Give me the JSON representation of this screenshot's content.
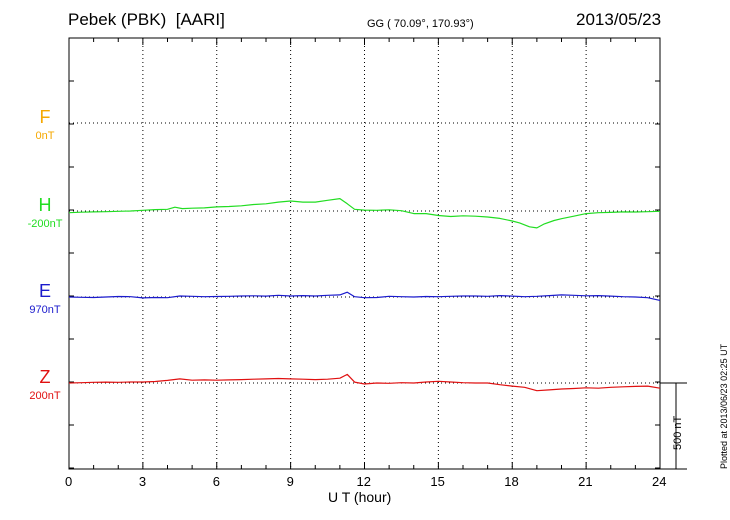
{
  "header": {
    "station": "Pebek (PBK)",
    "network": "[AARI]",
    "coords": "GG ( 70.09°, 170.93°)",
    "date": "2013/05/23"
  },
  "footer": {
    "plotted": "Plotted at 2013/06/23 02:25 UT"
  },
  "chart_data": {
    "type": "line",
    "title": "Pebek (PBK)  [AARI]",
    "xlabel": "U T (hour)",
    "xlim": [
      0,
      24
    ],
    "x_ticks": [
      "0",
      "3",
      "6",
      "9",
      "12",
      "15",
      "18",
      "21",
      "24"
    ],
    "grid": true,
    "scale_bar": {
      "label": "500 nT",
      "value_nT": 500
    },
    "components": [
      {
        "letter": "F",
        "baseline": "0nT",
        "color": "#f5a800",
        "has_data": false
      },
      {
        "letter": "H",
        "baseline": "-200nT",
        "color": "#22dd22",
        "has_data": true
      },
      {
        "letter": "E",
        "baseline": "970nT",
        "color": "#1a1acc",
        "has_data": true
      },
      {
        "letter": "Z",
        "baseline": "200nT",
        "color": "#e01010",
        "has_data": true
      }
    ],
    "series": [
      {
        "component": "H",
        "x": [
          0,
          0.5,
          1,
          1.5,
          2,
          2.5,
          3,
          3.5,
          4,
          4.3,
          4.6,
          5,
          5.5,
          6,
          6.5,
          7,
          7.5,
          8,
          8.5,
          9,
          9.5,
          10,
          10.5,
          11,
          11.3,
          11.6,
          12,
          12.5,
          13,
          13.5,
          14,
          14.5,
          15,
          15.5,
          16,
          16.5,
          17,
          17.5,
          18,
          18.3,
          18.7,
          19,
          19.3,
          19.7,
          20,
          20.5,
          21,
          21.5,
          22,
          22.5,
          23,
          23.5,
          24
        ],
        "y": [
          -10,
          -7,
          -5,
          -4,
          -2,
          0,
          4,
          8,
          10,
          22,
          14,
          16,
          18,
          24,
          26,
          30,
          38,
          42,
          52,
          58,
          52,
          52,
          62,
          72,
          42,
          10,
          5,
          4,
          7,
          2,
          -15,
          -15,
          -26,
          -32,
          -28,
          -30,
          -35,
          -43,
          -58,
          -69,
          -92,
          -98,
          -75,
          -55,
          -45,
          -30,
          -15,
          -10,
          -8,
          -5,
          -6,
          -4,
          -2
        ]
      },
      {
        "component": "E",
        "x": [
          0,
          0.5,
          1,
          1.5,
          2,
          2.5,
          3,
          3.5,
          4,
          4.5,
          5,
          5.5,
          6,
          6.5,
          7,
          7.5,
          8,
          8.5,
          9,
          9.5,
          10,
          10.5,
          11,
          11.3,
          11.6,
          12,
          12.5,
          13,
          13.5,
          14,
          14.5,
          15,
          15.5,
          16,
          16.5,
          17,
          17.5,
          18,
          18.5,
          19,
          19.5,
          20,
          20.5,
          21,
          21.5,
          22,
          22.5,
          23,
          23.5,
          24
        ],
        "y": [
          0,
          -2,
          -3,
          0,
          3,
          2,
          -5,
          -3,
          -4,
          6,
          4,
          2,
          3,
          4,
          6,
          7,
          5,
          10,
          6,
          8,
          6,
          10,
          12,
          28,
          2,
          -4,
          -3,
          4,
          2,
          0,
          3,
          2,
          4,
          6,
          6,
          4,
          8,
          5,
          2,
          4,
          8,
          12,
          10,
          7,
          8,
          5,
          2,
          0,
          -4,
          -20
        ]
      },
      {
        "component": "Z",
        "x": [
          0,
          0.5,
          1,
          1.5,
          2,
          2.5,
          3,
          3.5,
          4,
          4.5,
          5,
          5.5,
          6,
          6.5,
          7,
          7.5,
          8,
          8.5,
          9,
          9.5,
          10,
          10.5,
          11,
          11.3,
          11.6,
          12,
          12.5,
          13,
          13.5,
          14,
          14.5,
          15,
          15.5,
          16,
          16.5,
          17,
          17.5,
          18,
          18.5,
          19,
          19.5,
          20,
          20.5,
          21,
          21.5,
          22,
          22.5,
          23,
          23.5,
          24
        ],
        "y": [
          0,
          2,
          4,
          5,
          4,
          6,
          6,
          9,
          15,
          24,
          16,
          18,
          16,
          18,
          20,
          22,
          24,
          26,
          24,
          22,
          20,
          22,
          28,
          50,
          5,
          -6,
          0,
          -2,
          2,
          0,
          6,
          10,
          6,
          2,
          0,
          0,
          -10,
          -18,
          -25,
          -45,
          -40,
          -35,
          -32,
          -28,
          -30,
          -25,
          -22,
          -20,
          -18,
          -30
        ]
      }
    ]
  }
}
